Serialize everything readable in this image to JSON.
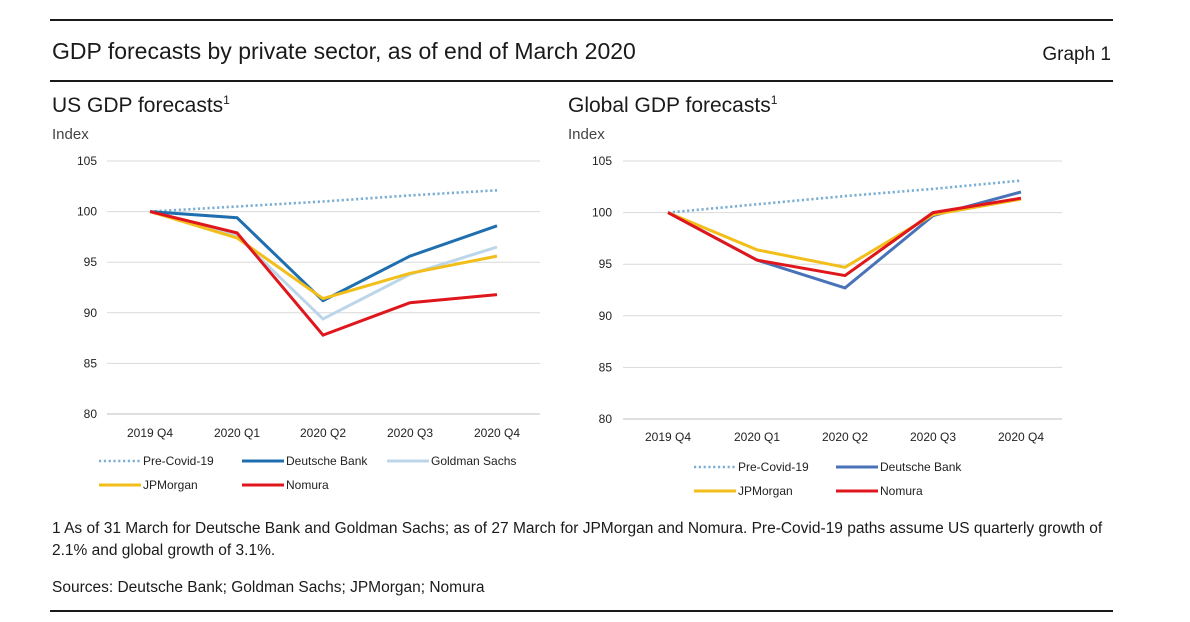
{
  "header": {
    "title": "GDP forecasts by private sector, as of end of March 2020",
    "graph_label": "Graph 1"
  },
  "colors": {
    "pre_covid": "#7aaed4",
    "deutsche_bank": "#1f6fb0",
    "goldman_sachs": "#bcd5ea",
    "jpmorgan": "#f2be1a",
    "nomura": "#e0161d",
    "deutsche_bank_global": "#4a72b8"
  },
  "chart_data": [
    {
      "type": "line",
      "title": "US GDP forecasts",
      "title_footnote": "1",
      "unit_label": "Index",
      "categories": [
        "2019 Q4",
        "2020 Q1",
        "2020 Q2",
        "2020 Q3",
        "2020 Q4"
      ],
      "ylim": [
        80,
        105
      ],
      "yticks": [
        "105",
        "100",
        "95",
        "90",
        "85",
        "80"
      ],
      "grid": true,
      "series": [
        {
          "name": "Pre-Covid-19",
          "style": "dotted",
          "color_key": "pre_covid",
          "values": [
            100,
            100.5,
            101.0,
            101.6,
            102.1
          ]
        },
        {
          "name": "Deutsche Bank",
          "style": "solid",
          "color_key": "deutsche_bank",
          "values": [
            100,
            99.4,
            91.2,
            95.6,
            98.6
          ]
        },
        {
          "name": "Goldman Sachs",
          "style": "solid",
          "color_key": "goldman_sachs",
          "values": [
            100,
            97.6,
            89.4,
            93.8,
            96.5
          ]
        },
        {
          "name": "JPMorgan",
          "style": "solid",
          "color_key": "jpmorgan",
          "values": [
            100,
            97.4,
            91.4,
            93.9,
            95.6
          ]
        },
        {
          "name": "Nomura",
          "style": "solid",
          "color_key": "nomura",
          "values": [
            100,
            97.9,
            87.8,
            91.0,
            91.8
          ]
        }
      ]
    },
    {
      "type": "line",
      "title": "Global GDP forecasts",
      "title_footnote": "1",
      "unit_label": "Index",
      "categories": [
        "2019 Q4",
        "2020 Q1",
        "2020 Q2",
        "2020 Q3",
        "2020 Q4"
      ],
      "ylim": [
        80,
        105
      ],
      "yticks": [
        "105",
        "100",
        "95",
        "90",
        "85",
        "80"
      ],
      "grid": true,
      "series": [
        {
          "name": "Pre-Covid-19",
          "style": "dotted",
          "color_key": "pre_covid",
          "values": [
            100,
            100.8,
            101.6,
            102.3,
            103.1
          ]
        },
        {
          "name": "Deutsche Bank",
          "style": "solid",
          "color_key": "deutsche_bank_global",
          "values": [
            100,
            95.4,
            92.7,
            99.7,
            102.0
          ]
        },
        {
          "name": "JPMorgan",
          "style": "solid",
          "color_key": "jpmorgan",
          "values": [
            100,
            96.4,
            94.7,
            99.8,
            101.3
          ]
        },
        {
          "name": "Nomura",
          "style": "solid",
          "color_key": "nomura",
          "values": [
            100,
            95.4,
            93.9,
            100.0,
            101.4
          ]
        }
      ]
    }
  ],
  "footnotes": {
    "note": "1 As of 31 March for Deutsche Bank and Goldman Sachs; as of 27 March for JPMorgan and Nomura. Pre-Covid-19 paths assume US quarterly growth of 2.1% and global growth of 3.1%.",
    "sources": "Sources: Deutsche Bank; Goldman Sachs; JPMorgan; Nomura"
  }
}
